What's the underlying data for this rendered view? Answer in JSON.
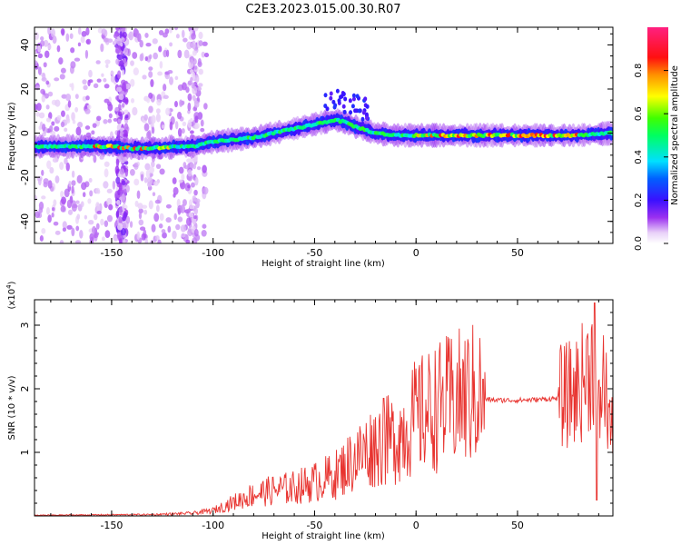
{
  "figure": {
    "title": "C2E3.2023.015.00.30.R07"
  },
  "chart_data": [
    {
      "type": "heatmap",
      "title": "C2E3.2023.015.00.30.R07",
      "xlabel": "Height of straight line (km)",
      "ylabel": "Frequency (Hz)",
      "xlim": [
        -188,
        97
      ],
      "ylim": [
        -50,
        48
      ],
      "x_ticks": [
        -150,
        -100,
        -50,
        0,
        50
      ],
      "y_ticks": [
        -40,
        -20,
        0,
        20,
        40
      ],
      "colorbar": {
        "label": "Normalized spectral amplitude",
        "range": [
          0,
          1
        ],
        "ticks": [
          0.0,
          0.2,
          0.4,
          0.6,
          0.8
        ]
      },
      "ridge_trace": {
        "x": [
          -188,
          -150,
          -140,
          -110,
          -100,
          -90,
          -80,
          -70,
          -60,
          -50,
          -40,
          -35,
          -30,
          -20,
          -10,
          0,
          20,
          50,
          80,
          97
        ],
        "y": [
          -6,
          -6,
          -7,
          -6,
          -4,
          -3,
          -2,
          0,
          2,
          4,
          6,
          5,
          3,
          0,
          -1,
          -1,
          -1,
          -1,
          -1,
          0
        ]
      },
      "grid": false
    },
    {
      "type": "line",
      "xlabel": "Height of straight line (km)",
      "ylabel": "SNR (10 * v/v)",
      "ylabel_exponent": "(x10",
      "ylabel_exponent_power": "4",
      "ylabel_exponent_close": ")",
      "xlim": [
        -188,
        97
      ],
      "ylim": [
        0,
        3.4
      ],
      "x_ticks": [
        -150,
        -100,
        -50,
        0,
        50
      ],
      "y_ticks": [
        1,
        2,
        3
      ],
      "color": "#e8332f",
      "envelope": {
        "x": [
          -188,
          -130,
          -110,
          -100,
          -90,
          -80,
          -70,
          -60,
          -50,
          -40,
          -30,
          -20,
          -10,
          0,
          10,
          20,
          30,
          35,
          40,
          50,
          60,
          70,
          75,
          80,
          85,
          88,
          90,
          92,
          97
        ],
        "y": [
          0.01,
          0.02,
          0.04,
          0.08,
          0.2,
          0.32,
          0.38,
          0.42,
          0.5,
          0.6,
          0.85,
          1.05,
          1.15,
          1.45,
          1.6,
          1.72,
          1.8,
          1.83,
          1.82,
          1.82,
          1.83,
          1.85,
          1.9,
          2.0,
          2.3,
          2.5,
          1.5,
          2.2,
          1.2
        ]
      },
      "grid": false
    }
  ]
}
